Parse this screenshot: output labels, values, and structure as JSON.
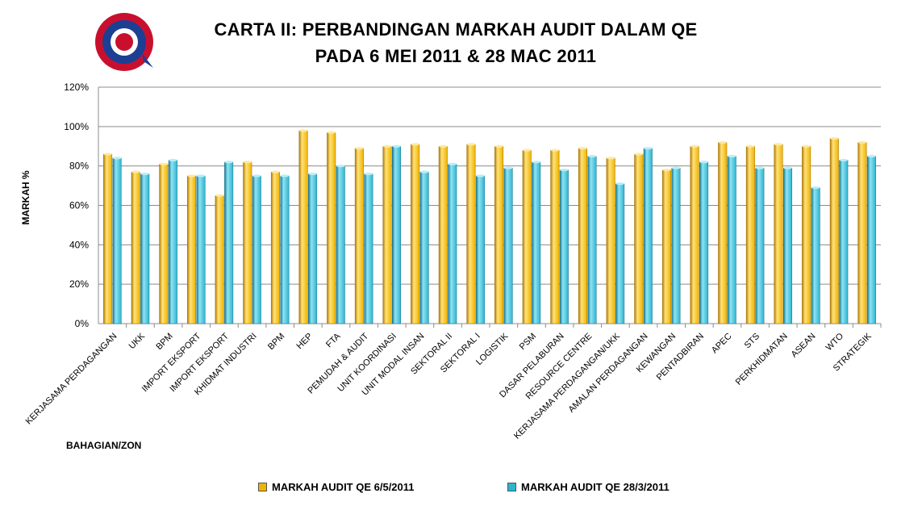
{
  "chart_data": {
    "type": "bar",
    "title": "CARTA II: PERBANDINGAN MARKAH AUDIT DALAM QE",
    "subtitle": "PADA 6 MEI 2011 & 28 MAC 2011",
    "xlabel": "BAHAGIAN/ZON",
    "ylabel": "MARKAH %",
    "ylim": [
      0,
      120
    ],
    "yticks": [
      "0%",
      "20%",
      "40%",
      "60%",
      "80%",
      "100%",
      "120%"
    ],
    "grid": true,
    "legend_position": "bottom",
    "categories": [
      "KERJASAMA PERDAGANGAN",
      "UKK",
      "BPM",
      "IMPORT EKSPORT",
      "IMPORT EKSPORT",
      "KHIDMAT INDUSTRI",
      "BPM",
      "HEP",
      "FTA",
      "PEMUDAH & AUDIT",
      "UNIT KOORDINASI",
      "UNIT MODAL INSAN",
      "SEKTORAL II",
      "SEKTORAL I",
      "LOGISTIK",
      "PSM",
      "DASAR PELABURAN",
      "RESOURCE CENTRE",
      "KERJASAMA PERDAGANGAN/UKK",
      "AMALAN PERDAGANGAN",
      "KEWANGAN",
      "PENTADBIRAN",
      "APEC",
      "STS",
      "PERKHIDMATAN",
      "ASEAN",
      "WTO",
      "STRATEGIK"
    ],
    "series": [
      {
        "name": "MARKAH AUDIT QE 6/5/2011",
        "color": "#F0B400",
        "values": [
          86,
          77,
          81,
          75,
          65,
          82,
          77,
          98,
          97,
          89,
          90,
          91,
          90,
          91,
          90,
          88,
          88,
          89,
          84,
          86,
          78,
          90,
          92,
          90,
          91,
          90,
          94,
          92
        ]
      },
      {
        "name": "MARKAH AUDIT QE 28/3/2011",
        "color": "#2EB4D0",
        "values": [
          84,
          76,
          83,
          75,
          82,
          75,
          75,
          76,
          80,
          76,
          90,
          77,
          81,
          75,
          79,
          82,
          78,
          85,
          71,
          89,
          79,
          82,
          85,
          79,
          79,
          69,
          83,
          85
        ]
      }
    ]
  },
  "logo": {
    "name": "organisation-seal",
    "colors": [
      "#1c3f94",
      "#c8102e",
      "#ffffff"
    ]
  }
}
